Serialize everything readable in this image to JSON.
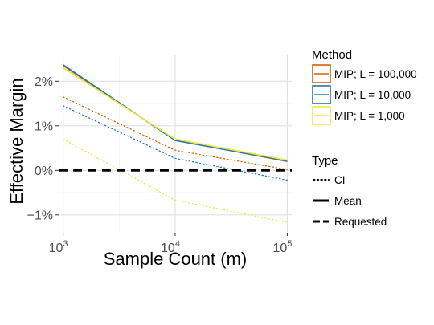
{
  "chart_data": {
    "type": "line",
    "xlabel": "Sample Count (m)",
    "ylabel": "Effective Margin",
    "x_scale": "log10",
    "xlim": [
      1000,
      100000
    ],
    "ylim": [
      -1.4,
      2.6
    ],
    "x_ticks": [
      {
        "value": 1000,
        "base": "10",
        "exp": "3"
      },
      {
        "value": 10000,
        "base": "10",
        "exp": "4"
      },
      {
        "value": 100000,
        "base": "10",
        "exp": "5"
      }
    ],
    "y_ticks": [
      {
        "value": 2,
        "label": "2%"
      },
      {
        "value": 1,
        "label": "1%"
      },
      {
        "value": 0,
        "label": "0%"
      },
      {
        "value": -1,
        "label": "−1%"
      }
    ],
    "grid": true,
    "requested_level": 0,
    "color_legend": {
      "title": "Method",
      "items": [
        {
          "label": "MIP; L = 100,000",
          "color": "#D95F02"
        },
        {
          "label": "MIP; L = 10,000",
          "color": "#1F78B4"
        },
        {
          "label": "MIP; L = 1,000",
          "color": "#F0E442"
        }
      ]
    },
    "type_legend": {
      "title": "Type",
      "items": [
        {
          "label": "CI",
          "style": "dotted"
        },
        {
          "label": "Mean",
          "style": "solid"
        },
        {
          "label": "Requested",
          "style": "dashed"
        }
      ]
    },
    "x": [
      1000,
      10000,
      100000
    ],
    "series": [
      {
        "method": 0,
        "kind": "mean",
        "values": [
          2.35,
          0.68,
          0.2
        ]
      },
      {
        "method": 0,
        "kind": "ci",
        "values": [
          1.65,
          0.45,
          0.02
        ]
      },
      {
        "method": 1,
        "kind": "mean",
        "values": [
          2.37,
          0.67,
          0.21
        ]
      },
      {
        "method": 1,
        "kind": "ci",
        "values": [
          1.45,
          0.27,
          -0.22
        ]
      },
      {
        "method": 2,
        "kind": "mean",
        "values": [
          2.3,
          0.7,
          0.23
        ]
      },
      {
        "method": 2,
        "kind": "ci",
        "values": [
          0.7,
          -0.67,
          -1.17
        ]
      }
    ]
  }
}
